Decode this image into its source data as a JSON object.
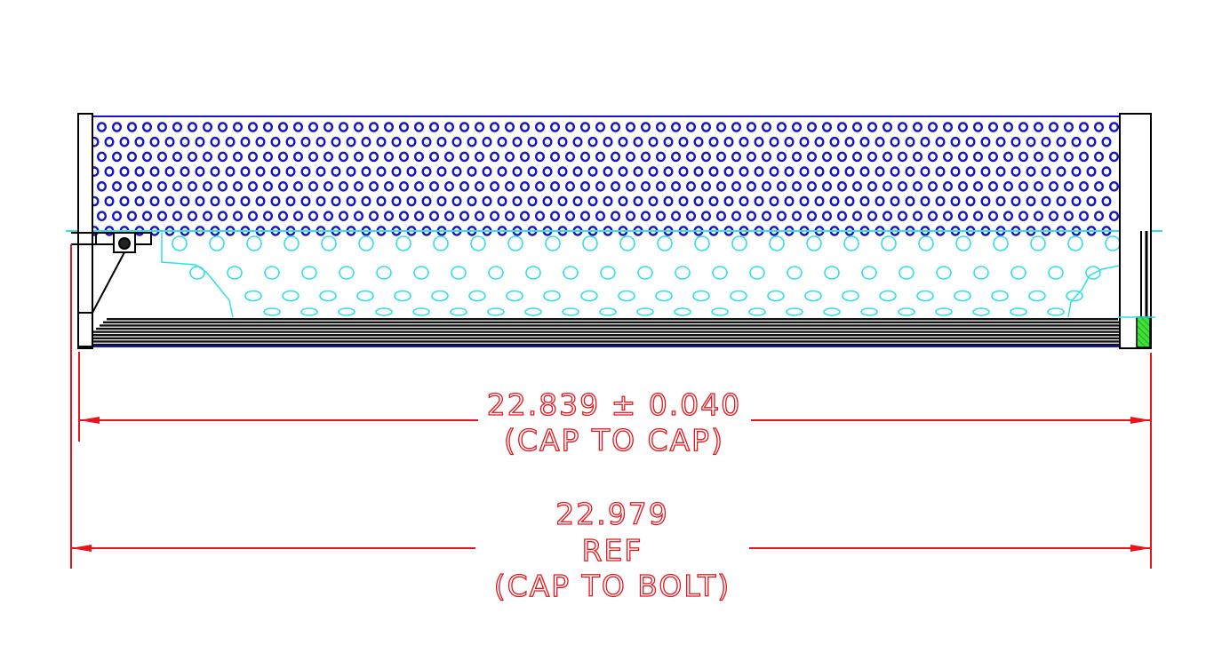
{
  "colors": {
    "perforation": "#1414c8",
    "cutaway": "#2fe0e6",
    "dimension": "#e8141b",
    "outline": "#000000",
    "seal": "#3ee03a"
  },
  "dimensions": {
    "cap_to_cap": {
      "value": "22.839 ± 0.040",
      "note": "(CAP TO CAP)"
    },
    "cap_to_bolt": {
      "value": "22.979",
      "ref": "REF",
      "note": "(CAP TO BOLT)"
    }
  }
}
